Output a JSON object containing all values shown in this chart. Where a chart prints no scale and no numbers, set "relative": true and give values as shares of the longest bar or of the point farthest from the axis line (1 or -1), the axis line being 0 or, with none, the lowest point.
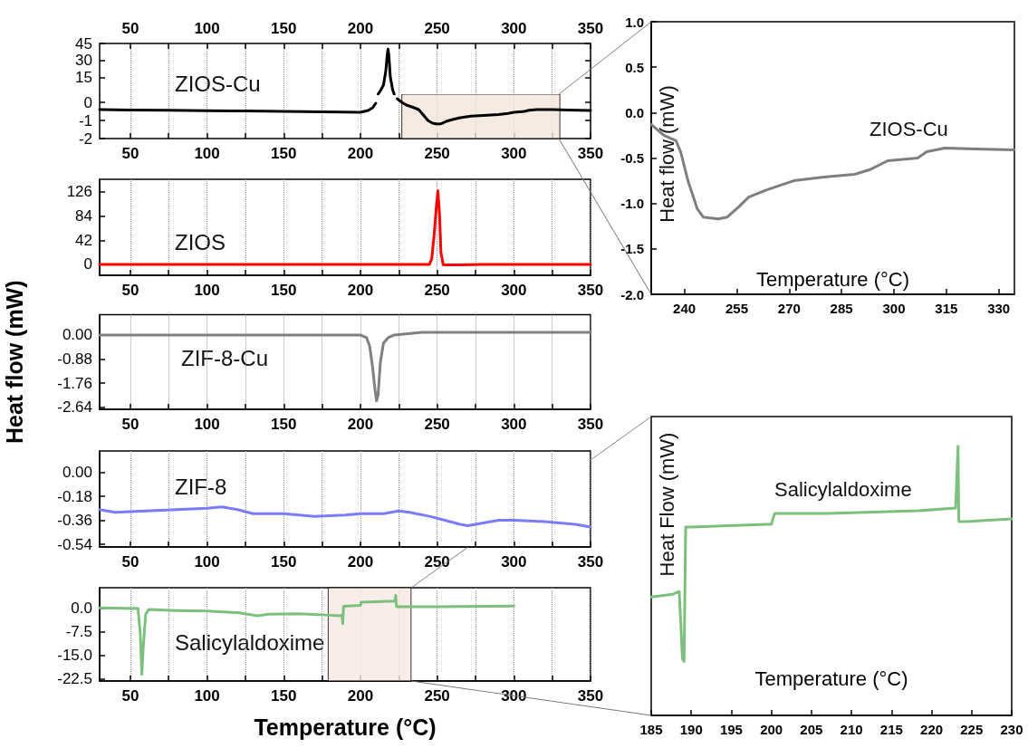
{
  "chart_data": [
    {
      "type": "line",
      "xlim": [
        30,
        350
      ],
      "xticks": [
        50,
        {
          "value": 75,
          "label": null
        },
        100,
        {
          "value": 125,
          "label": null
        },
        150,
        {
          "value": 175,
          "label": null
        },
        200,
        {
          "value": 225,
          "label": null
        },
        250,
        {
          "value": 275,
          "label": null
        },
        300,
        {
          "value": 325,
          "label": null
        },
        350
      ],
      "ylim": [
        0,
        45
      ],
      "yticks": [
        15,
        30,
        45
      ],
      "grid": "x",
      "annotations": [
        "ZIOS-Cu"
      ],
      "x": [
        211.5,
        213,
        215,
        216.5,
        217.5,
        218,
        218.5,
        219.5,
        221,
        222
      ],
      "series": [
        {
          "color": "#000000",
          "values": [
            0,
            3,
            8,
            20,
            35,
            40,
            35,
            15,
            4,
            0
          ]
        }
      ]
    },
    {
      "type": "line",
      "xlim": [
        30,
        350
      ],
      "xticks": [
        50,
        {
          "value": 75,
          "label": null
        },
        100,
        {
          "value": 125,
          "label": null
        },
        150,
        {
          "value": 175,
          "label": null
        },
        200,
        {
          "value": 225,
          "label": null
        },
        250,
        {
          "value": 275,
          "label": null
        },
        300,
        {
          "value": 325,
          "label": null
        },
        350
      ],
      "ylim": [
        -2,
        0.45
      ],
      "yticks": [
        0,
        -1,
        -2
      ],
      "grid": "x",
      "bands": [
        {
          "axis": "x",
          "from": 227,
          "to": 330,
          "color": "#f3e6da"
        }
      ],
      "x": [
        30,
        50,
        75,
        100,
        125,
        150,
        175,
        200,
        205,
        208,
        210,
        211.5,
        216,
        222,
        224,
        227,
        230,
        235,
        238,
        241,
        244,
        247,
        250,
        253,
        256,
        260,
        265,
        272,
        280,
        290,
        295,
        300,
        307,
        310,
        315,
        325,
        335,
        350
      ],
      "series": [
        {
          "color": "#000000",
          "values": [
            -0.4,
            -0.42,
            -0.44,
            -0.46,
            -0.48,
            -0.5,
            -0.52,
            -0.55,
            -0.45,
            -0.3,
            -0.05,
            null,
            null,
            null,
            0.2,
            0.0,
            -0.15,
            -0.3,
            -0.4,
            -0.7,
            -1.0,
            -1.15,
            -1.2,
            -1.17,
            -1.05,
            -0.95,
            -0.85,
            -0.76,
            -0.72,
            -0.68,
            -0.63,
            -0.55,
            -0.5,
            -0.44,
            -0.4,
            -0.4,
            -0.42,
            -0.45
          ]
        }
      ]
    },
    {
      "type": "line",
      "xlim": [
        30,
        350
      ],
      "xticks": [
        50,
        {
          "value": 75,
          "label": null
        },
        100,
        {
          "value": 125,
          "label": null
        },
        150,
        {
          "value": 175,
          "label": null
        },
        200,
        {
          "value": 225,
          "label": null
        },
        250,
        {
          "value": 275,
          "label": null
        },
        300,
        {
          "value": 325,
          "label": null
        },
        350
      ],
      "ylim": [
        -19,
        148
      ],
      "yticks": [
        0,
        42,
        84,
        126
      ],
      "grid": "x",
      "annotations": [
        "ZIOS"
      ],
      "x": [
        30,
        100,
        200,
        245,
        246.5,
        248,
        249.5,
        250.5,
        251.5,
        252.5,
        254,
        260,
        280,
        300,
        350
      ],
      "series": [
        {
          "color": "#ff0000",
          "values": [
            0,
            0,
            0,
            0,
            10,
            50,
            100,
            128,
            90,
            20,
            -1,
            -1,
            0,
            0,
            0
          ]
        }
      ]
    },
    {
      "type": "line",
      "xlim": [
        30,
        350
      ],
      "xticks": [
        50,
        {
          "value": 75,
          "label": null
        },
        100,
        {
          "value": 125,
          "label": null
        },
        150,
        {
          "value": 175,
          "label": null
        },
        200,
        {
          "value": 225,
          "label": null
        },
        250,
        {
          "value": 275,
          "label": null
        },
        300,
        {
          "value": 325,
          "label": null
        },
        350
      ],
      "ylim": [
        -2.71,
        0.74
      ],
      "yticks": [
        {
          "value": 0,
          "label": "0.00"
        },
        -0.88,
        -1.76,
        -2.64
      ],
      "grid": "x",
      "ylabel": "Heat flow (mW)",
      "annotations": [
        "ZIF-8-Cu"
      ],
      "x": [
        30,
        60,
        100,
        150,
        200,
        204,
        206,
        208,
        209.5,
        210.5,
        211.5,
        213,
        215,
        218,
        222,
        240,
        265,
        280,
        300,
        350
      ],
      "series": [
        {
          "color": "#808080",
          "values": [
            0,
            0,
            0,
            0,
            0,
            -0.1,
            -0.4,
            -1.2,
            -2.0,
            -2.4,
            -2.2,
            -1.0,
            -0.3,
            -0.1,
            0,
            0.1,
            0.1,
            0.1,
            0.1,
            0.1
          ]
        }
      ]
    },
    {
      "type": "line",
      "xlim": [
        30,
        350
      ],
      "xticks": [
        50,
        {
          "value": 75,
          "label": null
        },
        100,
        {
          "value": 125,
          "label": null
        },
        150,
        {
          "value": 175,
          "label": null
        },
        200,
        {
          "value": 225,
          "label": null
        },
        250,
        {
          "value": 275,
          "label": null
        },
        300,
        {
          "value": 325,
          "label": null
        },
        350
      ],
      "ylim": [
        -0.56,
        0.16
      ],
      "yticks": [
        {
          "value": 0,
          "label": "0.00"
        },
        -0.18,
        -0.36,
        -0.54
      ],
      "grid": "x",
      "annotations": [
        "ZIF-8"
      ],
      "x": [
        30,
        40,
        60,
        80,
        100,
        110,
        120,
        130,
        150,
        170,
        190,
        200,
        215,
        225,
        232,
        245,
        255,
        265,
        270,
        280,
        290,
        300,
        320,
        340,
        350
      ],
      "series": [
        {
          "color": "#7b7bff",
          "values": [
            -0.28,
            -0.3,
            -0.29,
            -0.28,
            -0.27,
            -0.26,
            -0.28,
            -0.31,
            -0.31,
            -0.33,
            -0.32,
            -0.31,
            -0.31,
            -0.29,
            -0.3,
            -0.33,
            -0.36,
            -0.39,
            -0.4,
            -0.38,
            -0.36,
            -0.36,
            -0.37,
            -0.39,
            -0.41
          ]
        }
      ]
    },
    {
      "type": "line",
      "xlim": [
        30,
        350
      ],
      "xticks": [
        50,
        {
          "value": 75,
          "label": null
        },
        100,
        {
          "value": 125,
          "label": null
        },
        150,
        {
          "value": 175,
          "label": null
        },
        200,
        {
          "value": 225,
          "label": null
        },
        250,
        {
          "value": 275,
          "label": null
        },
        300,
        {
          "value": 325,
          "label": null
        },
        350
      ],
      "ylim": [
        -23.1,
        6.4
      ],
      "yticks": [
        {
          "value": 0,
          "label": "0.0"
        },
        -7.5,
        {
          "value": -15,
          "label": "-15.0"
        },
        -22.5
      ],
      "grid": "x",
      "xlabel": "Temperature (°C)",
      "annotations": [
        "Salicylaldoxime"
      ],
      "bands": [
        {
          "axis": "x",
          "from": 179,
          "to": 233,
          "color": "#f7e8e4"
        }
      ],
      "x": [
        30,
        55,
        56.5,
        57.5,
        58.5,
        60,
        62,
        80,
        100,
        120,
        133,
        140,
        160,
        180,
        187,
        188,
        188.5,
        189,
        200,
        200.5,
        222.5,
        223,
        223.5,
        224,
        250,
        300
      ],
      "series": [
        {
          "color": "#7dc07d",
          "values": [
            0,
            -0.2,
            -8,
            -21,
            -12,
            -2,
            -0.5,
            -0.8,
            -1,
            -1.5,
            -2.5,
            -2,
            -1.8,
            -2.3,
            -2.5,
            -2.2,
            -5,
            0.5,
            0.8,
            1.8,
            2.2,
            4,
            0.5,
            0.4,
            0.4,
            0.6
          ]
        }
      ]
    },
    {
      "type": "line",
      "xlim": [
        230.5,
        334.5
      ],
      "xticks": [
        240,
        255,
        270,
        285,
        300,
        315,
        330
      ],
      "ylim": [
        -2,
        1
      ],
      "yticks": [
        {
          "value": -2,
          "label": "-2.0"
        },
        -1.5,
        {
          "value": -1,
          "label": "-1.0"
        },
        -0.5,
        {
          "value": 0,
          "label": "0.0"
        },
        0.5,
        {
          "value": 1,
          "label": "1.0"
        }
      ],
      "xlabel": "Temperature (°C)",
      "ylabel": "Heat flow (mW)",
      "annotations": [
        "ZIOS-Cu"
      ],
      "x": [
        230.5,
        234.1,
        237.6,
        238.9,
        241.1,
        243.7,
        245.4,
        249.7,
        252.3,
        255.8,
        258.4,
        263.6,
        271.3,
        280,
        288.7,
        293,
        298.2,
        306.8,
        309.4,
        314.6,
        323.3,
        334.5
      ],
      "series": [
        {
          "color": "#7f7f7f",
          "values": [
            -0.13,
            -0.25,
            -0.31,
            -0.43,
            -0.76,
            -1.06,
            -1.15,
            -1.17,
            -1.15,
            -1.03,
            -0.93,
            -0.85,
            -0.75,
            -0.71,
            -0.68,
            -0.63,
            -0.53,
            -0.5,
            -0.43,
            -0.39,
            -0.4,
            -0.41
          ]
        }
      ]
    },
    {
      "type": "line",
      "relative": true,
      "xlim": [
        185,
        230
      ],
      "xticks": [
        185,
        190,
        195,
        200,
        205,
        210,
        215,
        220,
        225,
        230
      ],
      "xlabel": "Temperature (°C)",
      "ylabel": "Heat Flow (mW)",
      "annotations": [
        "Salicylaldoxime"
      ],
      "x": [
        185,
        187.7,
        188.5,
        188.9,
        189.1,
        189.3,
        190,
        199.4,
        200,
        200.4,
        207,
        218.3,
        223,
        223.3,
        223.4,
        224.3,
        230
      ],
      "series": [
        {
          "color": "#7dc07d",
          "values": [
            0.44,
            0.45,
            0.46,
            0.21,
            0.2,
            0.7,
            0.7,
            0.71,
            0.71,
            0.75,
            0.75,
            0.76,
            0.77,
            1,
            0.72,
            0.72,
            0.73
          ]
        }
      ]
    }
  ]
}
